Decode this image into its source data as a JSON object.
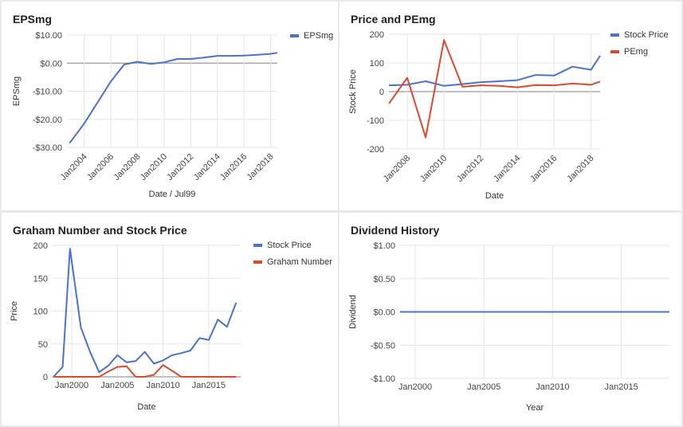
{
  "colors": {
    "blue": "#4a72cf",
    "red": "#db4a2e",
    "grid": "#e5e5e5",
    "zero": "#999999"
  },
  "charts": [
    {
      "title": "EPSmg",
      "chart_data": {
        "type": "line",
        "title": "EPSmg",
        "xlabel": "Date / Jul99",
        "ylabel": "EPSmg",
        "x_tick_labels": [
          "Jan2004",
          "Jan2006",
          "Jan2008",
          "Jan2010",
          "Jan2012",
          "Jan2014",
          "Jan2016",
          "Jan2018"
        ],
        "x_ticks": [
          2004,
          2006,
          2008,
          2010,
          2012,
          2014,
          2016,
          2018
        ],
        "y_tick_labels": [
          "$10.00",
          "$0.00",
          "-$10.00",
          "-$20.00",
          "-$30.00"
        ],
        "y_ticks": [
          10,
          0,
          -10,
          -20,
          -30
        ],
        "xlim": [
          2002.7,
          2018.5
        ],
        "ylim": [
          -30,
          10
        ],
        "legend": "top-right",
        "grid": true,
        "series": [
          {
            "name": "EPSmg",
            "color": "blue",
            "x": [
              2002.9,
              2004.0,
              2005.0,
              2006.0,
              2007.0,
              2008.0,
              2009.0,
              2010.0,
              2011.0,
              2012.0,
              2013.0,
              2014.0,
              2015.0,
              2016.0,
              2017.0,
              2018.0,
              2018.5
            ],
            "y": [
              -28.5,
              -21.5,
              -14.0,
              -6.5,
              -0.5,
              0.5,
              -0.3,
              0.3,
              1.5,
              1.5,
              2.0,
              2.6,
              2.6,
              2.7,
              3.0,
              3.3,
              3.7
            ]
          }
        ]
      }
    },
    {
      "title": "Price and PEmg",
      "chart_data": {
        "type": "line",
        "title": "Price and PEmg",
        "xlabel": "Date",
        "ylabel": "Stock Price",
        "x_tick_labels": [
          "Jan2008",
          "Jan2010",
          "Jan2012",
          "Jan2014",
          "Jan2016",
          "Jan2018"
        ],
        "x_ticks": [
          2008,
          2010,
          2012,
          2014,
          2016,
          2018
        ],
        "y_tick_labels": [
          "200",
          "100",
          "0",
          "-100",
          "-200"
        ],
        "y_ticks": [
          200,
          100,
          0,
          -100,
          -200
        ],
        "xlim": [
          2007.0,
          2018.5
        ],
        "ylim": [
          -200,
          200
        ],
        "legend": "top-right",
        "grid": true,
        "series": [
          {
            "name": "Stock Price",
            "color": "blue",
            "x": [
              2007.0,
              2008.0,
              2009.0,
              2010.0,
              2011.0,
              2012.0,
              2013.0,
              2014.0,
              2015.0,
              2016.0,
              2017.0,
              2018.0,
              2018.5
            ],
            "y": [
              22,
              24,
              36,
              20,
              26,
              33,
              36,
              40,
              58,
              56,
              87,
              76,
              125
            ]
          },
          {
            "name": "PEmg",
            "color": "red",
            "x": [
              2007.0,
              2008.0,
              2009.0,
              2010.0,
              2011.0,
              2012.0,
              2013.0,
              2014.0,
              2015.0,
              2016.0,
              2017.0,
              2018.0,
              2018.5
            ],
            "y": [
              -42,
              48,
              -160,
              180,
              17,
              22,
              20,
              15,
              23,
              22,
              28,
              24,
              35
            ]
          }
        ]
      }
    },
    {
      "title": "Graham Number and Stock Price",
      "chart_data": {
        "type": "line",
        "title": "Graham Number and Stock Price",
        "xlabel": "Date",
        "ylabel": "Price",
        "x_tick_labels": [
          "Jan2000",
          "Jan2005",
          "Jan2010",
          "Jan2015"
        ],
        "x_ticks": [
          2000,
          2005,
          2010,
          2015
        ],
        "y_tick_labels": [
          "200",
          "150",
          "100",
          "50",
          "0"
        ],
        "y_ticks": [
          200,
          150,
          100,
          50,
          0
        ],
        "xlim": [
          1997.9,
          2018.5
        ],
        "ylim": [
          0,
          200
        ],
        "legend": "top-right",
        "grid": true,
        "series": [
          {
            "name": "Stock Price",
            "color": "blue",
            "x": [
              1998.0,
              1999.0,
              1999.8,
              2001.0,
              2002.0,
              2003.0,
              2004.0,
              2005.0,
              2006.0,
              2007.0,
              2008.0,
              2009.0,
              2010.0,
              2011.0,
              2012.0,
              2013.0,
              2014.0,
              2015.0,
              2016.0,
              2017.0,
              2018.0
            ],
            "y": [
              0,
              15,
              195,
              75,
              38,
              7,
              17,
              33,
              22,
              24,
              38,
              20,
              25,
              33,
              36,
              40,
              59,
              56,
              87,
              76,
              113
            ]
          },
          {
            "name": "Graham Number",
            "color": "red",
            "x": [
              1998.0,
              1999.0,
              2000.0,
              2001.0,
              2002.0,
              2003.0,
              2004.0,
              2005.0,
              2006.0,
              2007.0,
              2008.0,
              2009.0,
              2010.0,
              2011.0,
              2012.0,
              2013.0,
              2014.0,
              2015.0,
              2016.0,
              2017.0,
              2018.0
            ],
            "y": [
              0,
              0,
              0,
              0,
              0,
              0,
              8,
              15,
              16,
              0,
              0,
              3,
              18,
              9,
              0,
              0,
              0,
              0,
              0,
              0,
              0
            ]
          }
        ]
      }
    },
    {
      "title": "Dividend History",
      "chart_data": {
        "type": "line",
        "title": "Dividend History",
        "xlabel": "Year",
        "ylabel": "Dividend",
        "x_tick_labels": [
          "Jan2000",
          "Jan2005",
          "Jan2010",
          "Jan2015"
        ],
        "x_ticks": [
          2000,
          2005,
          2010,
          2015
        ],
        "y_tick_labels": [
          "$1.00",
          "$0.50",
          "$0.00",
          "-$0.50",
          "-$1.00"
        ],
        "y_ticks": [
          1,
          0.5,
          0,
          -0.5,
          -1
        ],
        "xlim": [
          1998.9,
          2018.5
        ],
        "ylim": [
          -1,
          1
        ],
        "grid": true,
        "series": [
          {
            "color": "blue",
            "x": [
              1998.9,
              2018.5
            ],
            "y": [
              0,
              0
            ]
          }
        ]
      }
    }
  ]
}
